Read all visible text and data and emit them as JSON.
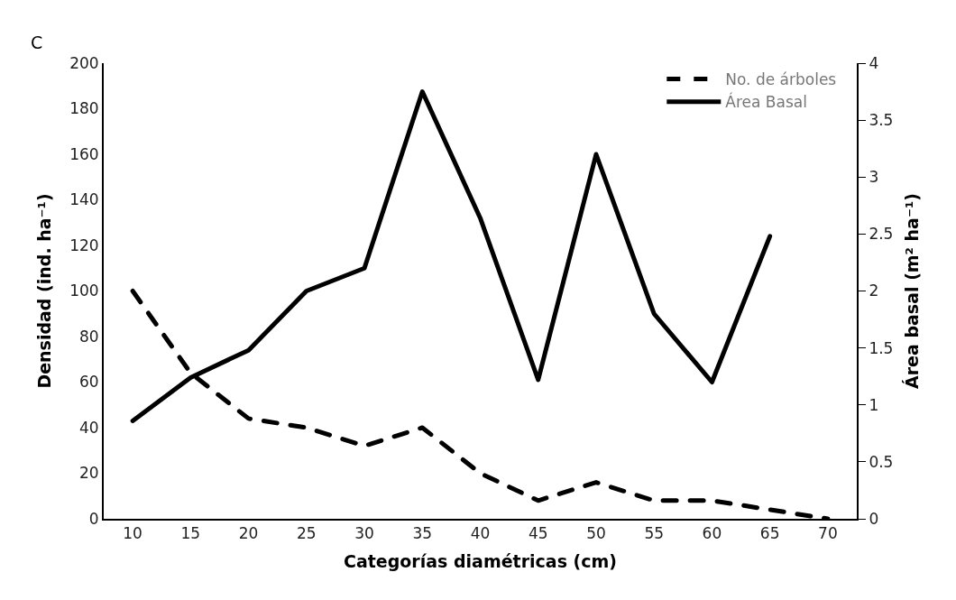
{
  "chart_data": {
    "type": "line",
    "annotations": [
      "C"
    ],
    "xlabel": "Categorías diamétricas (cm)",
    "ylabel": "Densidad (ind. ha⁻¹)",
    "y2label": "Área basal (m² ha⁻¹)",
    "categories": [
      "10",
      "15",
      "20",
      "25",
      "30",
      "35",
      "40",
      "45",
      "50",
      "55",
      "60",
      "65",
      "70"
    ],
    "series": [
      {
        "name": "No. de árboles",
        "color": "#000000",
        "line_style": "dashed",
        "values": [
          100,
          64,
          44,
          40,
          32,
          40,
          20,
          8,
          16,
          8,
          8,
          4,
          0
        ]
      },
      {
        "name": "Área Basal",
        "color": "#000000",
        "line_style": "solid",
        "axis": "y2",
        "values": [
          0.86,
          1.24,
          1.48,
          2.0,
          2.2,
          3.75,
          2.64,
          1.22,
          3.2,
          1.8,
          1.2,
          2.48,
          null
        ]
      }
    ],
    "ylim": [
      0,
      200
    ],
    "yticks": [
      0,
      20,
      40,
      60,
      80,
      100,
      120,
      140,
      160,
      180,
      200
    ],
    "y2lim": [
      0,
      4
    ],
    "y2ticks": [
      0,
      0.5,
      1,
      1.5,
      2,
      2.5,
      3,
      3.5,
      4
    ],
    "legend": "top right",
    "marker": "none"
  }
}
